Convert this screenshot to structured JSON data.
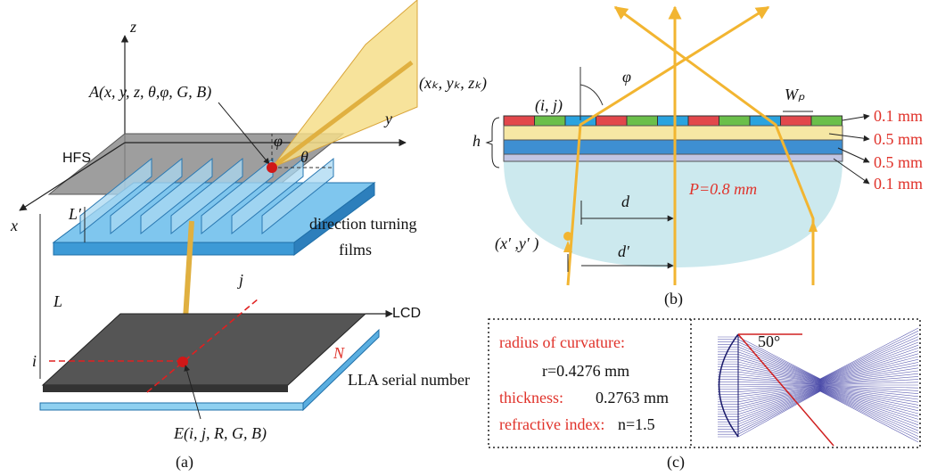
{
  "panel_a": {
    "caption": "(a)",
    "z_axis": "z",
    "y_axis": "y",
    "x_axis": "x",
    "point_a": "A(x, y, z, θ,φ, G, B)",
    "target": "(xₖ, yₖ, zₖ)",
    "hfs": "HFS",
    "phi": "φ",
    "theta": "θ",
    "l_prime": "L′",
    "films_line1": "direction turning",
    "films_line2": "films",
    "l": "L",
    "j": "j",
    "i": "i",
    "lcd": "LCD",
    "n": "N",
    "lla": "LLA serial number",
    "point_e": "E(i, j, R, G, B)"
  },
  "panel_b": {
    "caption": "(b)",
    "phi": "φ",
    "pixel": "(i, j)",
    "wp": "Wₚ",
    "h": "h",
    "layers": [
      "0.1 mm",
      "0.5 mm",
      "0.5 mm",
      "0.1 mm"
    ],
    "pitch": "P=0.8 mm",
    "d": "d",
    "source": "(x′ ,y′ )",
    "d_prime": "d′"
  },
  "panel_c": {
    "caption": "(c)",
    "radius_label": "radius of curvature:",
    "radius_value": "r=0.4276 mm",
    "thickness_label": "thickness:",
    "thickness_value": "0.2763 mm",
    "index_label": "refractive index:",
    "index_value": "n=1.5",
    "angle": "50°"
  }
}
